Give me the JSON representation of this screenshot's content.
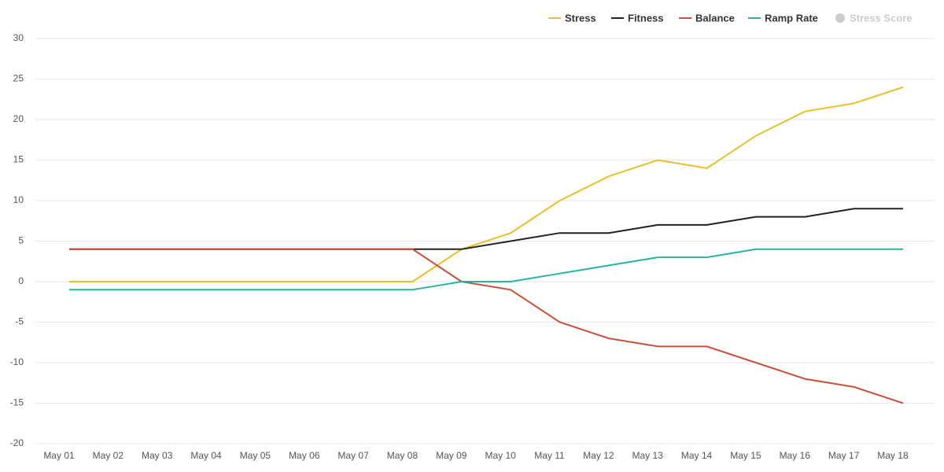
{
  "chart_data": {
    "type": "line",
    "categories": [
      "May 01",
      "May 02",
      "May 03",
      "May 04",
      "May 05",
      "May 06",
      "May 07",
      "May 08",
      "May 09",
      "May 10",
      "May 11",
      "May 12",
      "May 13",
      "May 14",
      "May 15",
      "May 16",
      "May 17",
      "May 18"
    ],
    "series": [
      {
        "name": "Stress",
        "color": "#e6c229",
        "values": [
          0,
          0,
          0,
          0,
          0,
          0,
          0,
          0,
          4,
          6,
          10,
          13,
          15,
          14,
          18,
          21,
          22,
          24
        ]
      },
      {
        "name": "Fitness",
        "color": "#222222",
        "values": [
          4,
          4,
          4,
          4,
          4,
          4,
          4,
          4,
          4,
          5,
          6,
          6,
          7,
          7,
          8,
          8,
          9,
          9
        ]
      },
      {
        "name": "Balance",
        "color": "#cc4f3c",
        "values": [
          4,
          4,
          4,
          4,
          4,
          4,
          4,
          4,
          0,
          -1,
          -5,
          -7,
          -8,
          -8,
          -10,
          -12,
          -13,
          -15
        ]
      },
      {
        "name": "Ramp Rate",
        "color": "#26b3a3",
        "values": [
          -1,
          -1,
          -1,
          -1,
          -1,
          -1,
          -1,
          -1,
          0,
          0,
          1,
          2,
          3,
          3,
          4,
          4,
          4,
          4
        ]
      },
      {
        "name": "Stress Score",
        "color": "#cccccc",
        "hidden": true,
        "values": [
          null,
          null,
          null,
          null,
          null,
          null,
          null,
          null,
          null,
          null,
          null,
          null,
          null,
          null,
          null,
          null,
          null,
          null
        ]
      }
    ],
    "ylim": [
      -20,
      30
    ],
    "yticks": [
      -20,
      -15,
      -10,
      -5,
      0,
      5,
      10,
      15,
      20,
      25,
      30
    ],
    "grid": true,
    "legend": "top-right"
  }
}
